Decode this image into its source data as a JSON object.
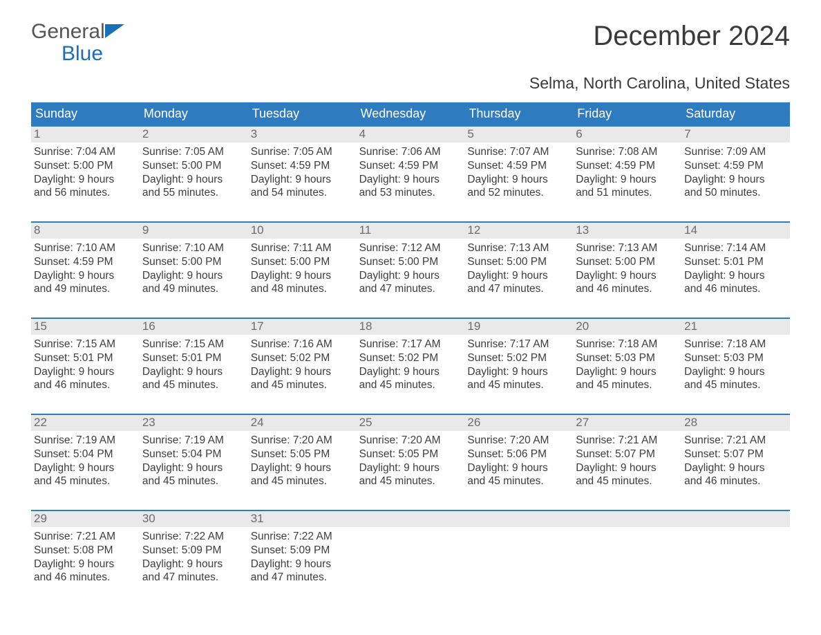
{
  "logo": {
    "line1": "General",
    "line2": "Blue",
    "icon_color": "#1a6fb5"
  },
  "title": "December 2024",
  "subtitle": "Selma, North Carolina, United States",
  "colors": {
    "header_bg": "#2f7bbf",
    "header_text": "#ffffff",
    "week_border": "#2f7bbf",
    "daynum_bg": "#e9e9e9",
    "daynum_text": "#6b6b6b",
    "body_text": "#3d3d3d"
  },
  "weekdays": [
    "Sunday",
    "Monday",
    "Tuesday",
    "Wednesday",
    "Thursday",
    "Friday",
    "Saturday"
  ],
  "weeks": [
    [
      {
        "n": "1",
        "sunrise": "7:04 AM",
        "sunset": "5:00 PM",
        "dl1": "9 hours",
        "dl2": "and 56 minutes."
      },
      {
        "n": "2",
        "sunrise": "7:05 AM",
        "sunset": "5:00 PM",
        "dl1": "9 hours",
        "dl2": "and 55 minutes."
      },
      {
        "n": "3",
        "sunrise": "7:05 AM",
        "sunset": "4:59 PM",
        "dl1": "9 hours",
        "dl2": "and 54 minutes."
      },
      {
        "n": "4",
        "sunrise": "7:06 AM",
        "sunset": "4:59 PM",
        "dl1": "9 hours",
        "dl2": "and 53 minutes."
      },
      {
        "n": "5",
        "sunrise": "7:07 AM",
        "sunset": "4:59 PM",
        "dl1": "9 hours",
        "dl2": "and 52 minutes."
      },
      {
        "n": "6",
        "sunrise": "7:08 AM",
        "sunset": "4:59 PM",
        "dl1": "9 hours",
        "dl2": "and 51 minutes."
      },
      {
        "n": "7",
        "sunrise": "7:09 AM",
        "sunset": "4:59 PM",
        "dl1": "9 hours",
        "dl2": "and 50 minutes."
      }
    ],
    [
      {
        "n": "8",
        "sunrise": "7:10 AM",
        "sunset": "4:59 PM",
        "dl1": "9 hours",
        "dl2": "and 49 minutes."
      },
      {
        "n": "9",
        "sunrise": "7:10 AM",
        "sunset": "5:00 PM",
        "dl1": "9 hours",
        "dl2": "and 49 minutes."
      },
      {
        "n": "10",
        "sunrise": "7:11 AM",
        "sunset": "5:00 PM",
        "dl1": "9 hours",
        "dl2": "and 48 minutes."
      },
      {
        "n": "11",
        "sunrise": "7:12 AM",
        "sunset": "5:00 PM",
        "dl1": "9 hours",
        "dl2": "and 47 minutes."
      },
      {
        "n": "12",
        "sunrise": "7:13 AM",
        "sunset": "5:00 PM",
        "dl1": "9 hours",
        "dl2": "and 47 minutes."
      },
      {
        "n": "13",
        "sunrise": "7:13 AM",
        "sunset": "5:00 PM",
        "dl1": "9 hours",
        "dl2": "and 46 minutes."
      },
      {
        "n": "14",
        "sunrise": "7:14 AM",
        "sunset": "5:01 PM",
        "dl1": "9 hours",
        "dl2": "and 46 minutes."
      }
    ],
    [
      {
        "n": "15",
        "sunrise": "7:15 AM",
        "sunset": "5:01 PM",
        "dl1": "9 hours",
        "dl2": "and 46 minutes."
      },
      {
        "n": "16",
        "sunrise": "7:15 AM",
        "sunset": "5:01 PM",
        "dl1": "9 hours",
        "dl2": "and 45 minutes."
      },
      {
        "n": "17",
        "sunrise": "7:16 AM",
        "sunset": "5:02 PM",
        "dl1": "9 hours",
        "dl2": "and 45 minutes."
      },
      {
        "n": "18",
        "sunrise": "7:17 AM",
        "sunset": "5:02 PM",
        "dl1": "9 hours",
        "dl2": "and 45 minutes."
      },
      {
        "n": "19",
        "sunrise": "7:17 AM",
        "sunset": "5:02 PM",
        "dl1": "9 hours",
        "dl2": "and 45 minutes."
      },
      {
        "n": "20",
        "sunrise": "7:18 AM",
        "sunset": "5:03 PM",
        "dl1": "9 hours",
        "dl2": "and 45 minutes."
      },
      {
        "n": "21",
        "sunrise": "7:18 AM",
        "sunset": "5:03 PM",
        "dl1": "9 hours",
        "dl2": "and 45 minutes."
      }
    ],
    [
      {
        "n": "22",
        "sunrise": "7:19 AM",
        "sunset": "5:04 PM",
        "dl1": "9 hours",
        "dl2": "and 45 minutes."
      },
      {
        "n": "23",
        "sunrise": "7:19 AM",
        "sunset": "5:04 PM",
        "dl1": "9 hours",
        "dl2": "and 45 minutes."
      },
      {
        "n": "24",
        "sunrise": "7:20 AM",
        "sunset": "5:05 PM",
        "dl1": "9 hours",
        "dl2": "and 45 minutes."
      },
      {
        "n": "25",
        "sunrise": "7:20 AM",
        "sunset": "5:05 PM",
        "dl1": "9 hours",
        "dl2": "and 45 minutes."
      },
      {
        "n": "26",
        "sunrise": "7:20 AM",
        "sunset": "5:06 PM",
        "dl1": "9 hours",
        "dl2": "and 45 minutes."
      },
      {
        "n": "27",
        "sunrise": "7:21 AM",
        "sunset": "5:07 PM",
        "dl1": "9 hours",
        "dl2": "and 45 minutes."
      },
      {
        "n": "28",
        "sunrise": "7:21 AM",
        "sunset": "5:07 PM",
        "dl1": "9 hours",
        "dl2": "and 46 minutes."
      }
    ],
    [
      {
        "n": "29",
        "sunrise": "7:21 AM",
        "sunset": "5:08 PM",
        "dl1": "9 hours",
        "dl2": "and 46 minutes."
      },
      {
        "n": "30",
        "sunrise": "7:22 AM",
        "sunset": "5:09 PM",
        "dl1": "9 hours",
        "dl2": "and 47 minutes."
      },
      {
        "n": "31",
        "sunrise": "7:22 AM",
        "sunset": "5:09 PM",
        "dl1": "9 hours",
        "dl2": "and 47 minutes."
      },
      null,
      null,
      null,
      null
    ]
  ],
  "labels": {
    "sunrise": "Sunrise: ",
    "sunset": "Sunset: ",
    "daylight": "Daylight: "
  }
}
